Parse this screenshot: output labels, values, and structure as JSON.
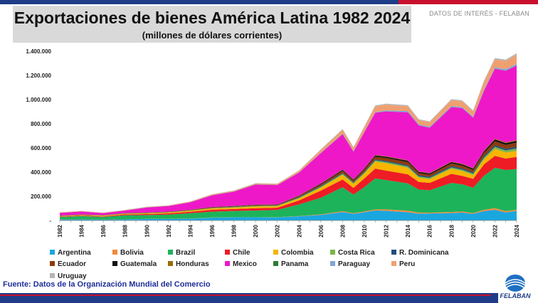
{
  "header": {
    "title": "Exportaciones de bienes América Latina 1982 2024",
    "subtitle": "(millones de dólares corrientes)",
    "tagline": "DATOS DE INTERÉS - FELABAN"
  },
  "footer": {
    "source": "Fuente: Datos de la Organización Mundial del Comercio",
    "logo_text": "FELABAN"
  },
  "colors": {
    "bar_blue": "#1f3c88",
    "bar_red": "#c8102e",
    "title_bg": "#d9d9d9",
    "source_text": "#1f2f99"
  },
  "chart_data": {
    "type": "area",
    "stacked": true,
    "title": "Exportaciones de bienes América Latina 1982 2024",
    "subtitle": "(millones de dólares corrientes)",
    "xlabel": "",
    "ylabel": "",
    "ylim": [
      0,
      1400000
    ],
    "yticks": [
      0,
      200000,
      400000,
      600000,
      800000,
      1000000,
      1200000,
      1400000
    ],
    "ytick_labels": [
      "-",
      "200.000",
      "400.000",
      "600.000",
      "800.000",
      "1.000.000",
      "1.200.000",
      "1.400.000"
    ],
    "xtick_labels": [
      "1982",
      "1984",
      "1986",
      "1988",
      "1990",
      "1992",
      "1994",
      "1996",
      "1998",
      "2000",
      "2002",
      "2004",
      "2006",
      "2008",
      "2010",
      "2012",
      "2014",
      "2016",
      "2018",
      "2020",
      "2022",
      "2024"
    ],
    "x": [
      1982,
      1984,
      1986,
      1988,
      1990,
      1992,
      1994,
      1996,
      1998,
      2000,
      2002,
      2004,
      2006,
      2008,
      2009,
      2010,
      2011,
      2012,
      2014,
      2015,
      2016,
      2018,
      2019,
      2020,
      2021,
      2022,
      2023,
      2024
    ],
    "legend_position": "bottom",
    "grid": false,
    "series": [
      {
        "name": "Argentina",
        "color": "#1aa7e0",
        "values": [
          7600,
          8100,
          6900,
          9100,
          12400,
          12200,
          15800,
          23800,
          26400,
          26300,
          25700,
          34600,
          46500,
          70000,
          55700,
          68200,
          83000,
          80000,
          68400,
          56800,
          57900,
          61800,
          65100,
          54900,
          77900,
          88400,
          66800,
          79700
        ]
      },
      {
        "name": "Bolivia",
        "color": "#f28a3c",
        "values": [
          900,
          800,
          600,
          600,
          900,
          700,
          1100,
          1200,
          1100,
          1200,
          1300,
          2100,
          4100,
          6900,
          5400,
          6900,
          9100,
          11800,
          12900,
          8700,
          7100,
          9000,
          8800,
          7000,
          11100,
          13600,
          11000,
          9000
        ]
      },
      {
        "name": "Brazil",
        "color": "#1db35a",
        "values": [
          20200,
          27000,
          22300,
          33800,
          31400,
          35800,
          43500,
          47700,
          51100,
          55100,
          60400,
          96700,
          137800,
          197900,
          153000,
          201900,
          256000,
          242600,
          225100,
          191100,
          185200,
          239900,
          225400,
          209200,
          280800,
          334100,
          339700,
          337000
        ]
      },
      {
        "name": "Chile",
        "color": "#ee1c25",
        "values": [
          3700,
          3700,
          4200,
          7100,
          8400,
          10000,
          11600,
          16600,
          16300,
          19200,
          18200,
          32500,
          58700,
          64500,
          55500,
          71000,
          81400,
          78000,
          75100,
          62200,
          60700,
          75200,
          69700,
          73500,
          94700,
          98500,
          94900,
          100200
        ]
      },
      {
        "name": "Colombia",
        "color": "#f7b500",
        "values": [
          3100,
          4400,
          5100,
          5000,
          6800,
          7300,
          8500,
          10600,
          10900,
          13000,
          11900,
          16800,
          24400,
          37600,
          32800,
          39800,
          56900,
          60100,
          54800,
          35700,
          31000,
          41800,
          39500,
          31100,
          41400,
          57300,
          49500,
          49600
        ]
      },
      {
        "name": "Costa Rica",
        "color": "#7ab648",
        "values": [
          900,
          1000,
          1100,
          1200,
          1400,
          1800,
          2200,
          3000,
          5500,
          5800,
          5300,
          6300,
          8100,
          9500,
          8800,
          9400,
          10300,
          11500,
          11200,
          9400,
          10000,
          11400,
          11600,
          11700,
          14400,
          16700,
          18600,
          20300
        ]
      },
      {
        "name": "R. Dominicana",
        "color": "#1f4e79",
        "values": [
          800,
          900,
          700,
          900,
          700,
          600,
          600,
          900,
          900,
          1000,
          1200,
          5900,
          6500,
          6700,
          5500,
          6800,
          8400,
          9100,
          9900,
          9400,
          10000,
          11200,
          11200,
          10300,
          12500,
          13600,
          13100,
          13600
        ]
      },
      {
        "name": "Ecuador",
        "color": "#8b3a0f",
        "values": [
          2300,
          2600,
          2200,
          2200,
          2700,
          3000,
          3800,
          4900,
          4200,
          4900,
          5000,
          7800,
          12700,
          18800,
          13900,
          17500,
          22300,
          23900,
          25700,
          18300,
          16800,
          21600,
          22300,
          20300,
          26700,
          32700,
          31100,
          34400
        ]
      },
      {
        "name": "Guatemala",
        "color": "#111111",
        "values": [
          1200,
          1100,
          1000,
          1100,
          1200,
          1300,
          1500,
          2000,
          2600,
          3100,
          2400,
          3400,
          6000,
          7800,
          7300,
          8500,
          10500,
          10000,
          10800,
          10700,
          10500,
          11100,
          11200,
          11500,
          13600,
          15800,
          15000,
          14700
        ]
      },
      {
        "name": "Honduras",
        "color": "#9c6b00",
        "values": [
          700,
          700,
          900,
          900,
          900,
          800,
          1000,
          1300,
          1500,
          1400,
          1300,
          1500,
          2000,
          2900,
          2300,
          2700,
          3800,
          4400,
          4000,
          3800,
          3700,
          3900,
          4000,
          3900,
          5200,
          6000,
          5800,
          5900
        ]
      },
      {
        "name": "Mexico",
        "color": "#ee18c8",
        "values": [
          21200,
          24200,
          16200,
          20600,
          40700,
          46200,
          60900,
          96000,
          117500,
          166400,
          160800,
          188600,
          250300,
          291300,
          229700,
          298500,
          349600,
          370900,
          397100,
          380600,
          374000,
          450700,
          460600,
          416900,
          494600,
          578200,
          593000,
          617100
        ]
      },
      {
        "name": "Panama",
        "color": "#2e7d32",
        "values": [
          400,
          300,
          300,
          300,
          300,
          500,
          600,
          600,
          800,
          900,
          800,
          900,
          1100,
          1200,
          900,
          800,
          800,
          800,
          800,
          700,
          700,
          700,
          700,
          700,
          1100,
          1300,
          1300,
          1400
        ]
      },
      {
        "name": "Paraguay",
        "color": "#7fa7d6",
        "values": [
          300,
          300,
          200,
          500,
          1000,
          700,
          800,
          1000,
          1000,
          900,
          1000,
          1600,
          2900,
          4500,
          3900,
          4500,
          5200,
          7300,
          9600,
          8300,
          8500,
          9000,
          7900,
          8500,
          10500,
          9900,
          11700,
          12900
        ]
      },
      {
        "name": "Peru",
        "color": "#f0a070",
        "values": [
          3300,
          3100,
          2500,
          2700,
          3300,
          3500,
          4400,
          5900,
          5700,
          7000,
          7700,
          12800,
          23800,
          31000,
          27100,
          35800,
          46400,
          47400,
          39500,
          34400,
          37000,
          49100,
          47700,
          42900,
          63200,
          66200,
          67500,
          75800
        ]
      },
      {
        "name": "Uruguay",
        "color": "#b5b5b5",
        "values": [
          1200,
          900,
          1100,
          1400,
          1700,
          1700,
          1900,
          2400,
          2800,
          2300,
          1900,
          3000,
          4000,
          6000,
          5400,
          6700,
          8000,
          8700,
          9100,
          7700,
          6900,
          7500,
          7700,
          6800,
          9600,
          11400,
          11000,
          11400
        ]
      }
    ]
  }
}
